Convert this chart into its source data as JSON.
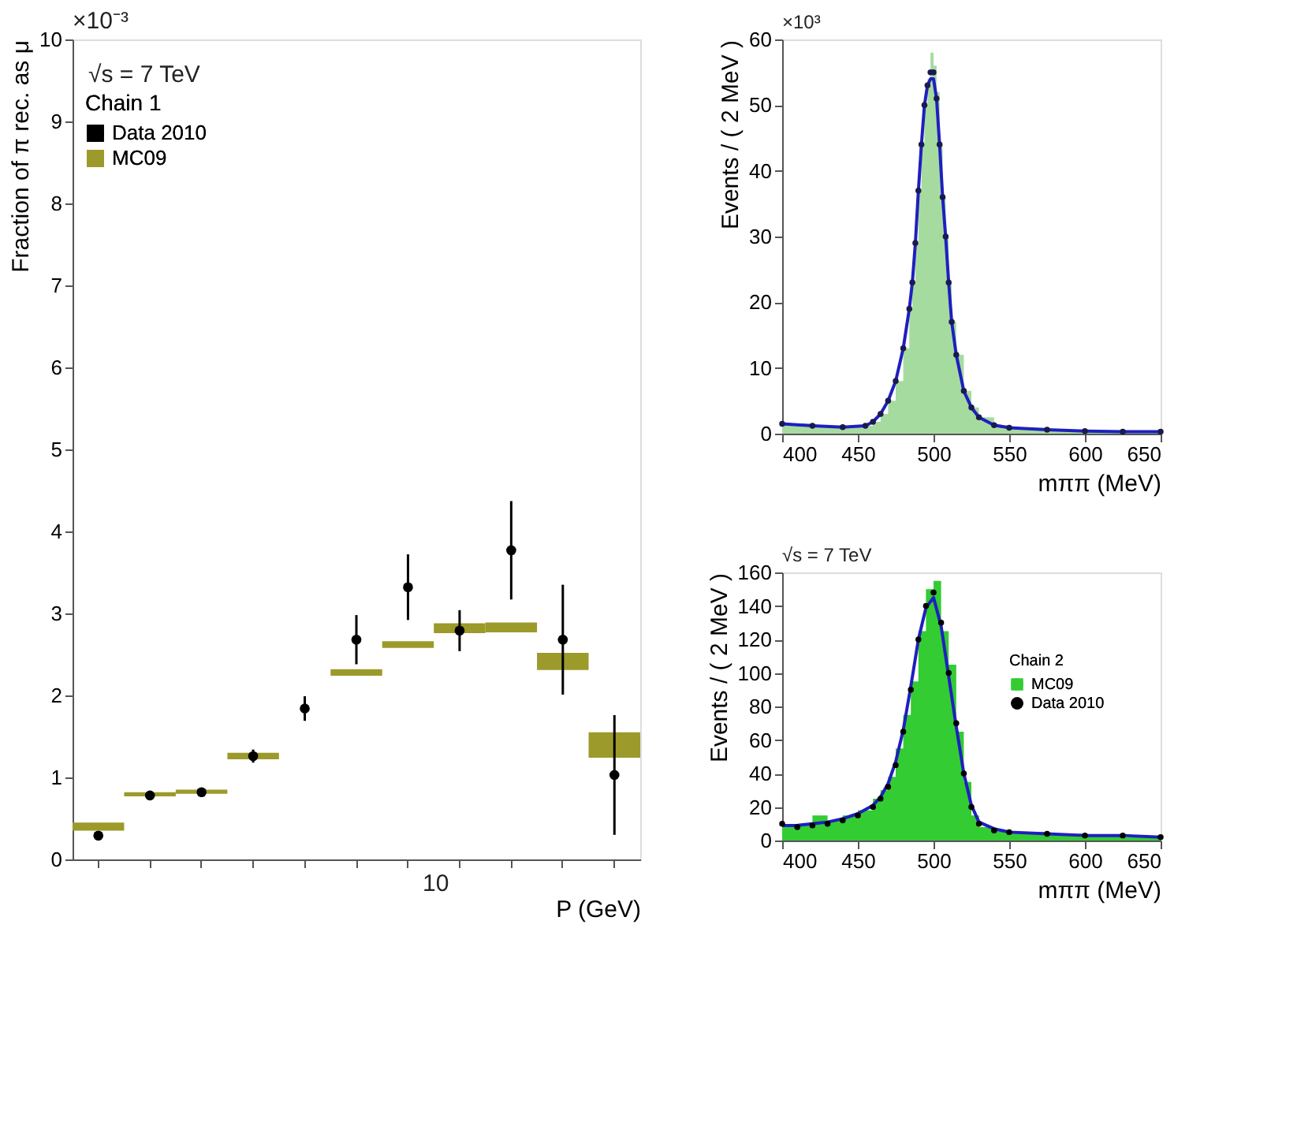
{
  "chart_data": [
    {
      "type": "scatter",
      "xlabel": "P (GeV)",
      "ylabel": "Fraction of  π rec. as μ",
      "legend_title": "Chain 1",
      "annotations": [
        "×10⁻³",
        "√s = 7 TeV",
        "10"
      ],
      "ylim": [
        0,
        10
      ],
      "yticks": [
        0,
        1,
        2,
        3,
        4,
        5,
        6,
        7,
        8,
        9,
        10
      ],
      "grid": false,
      "legend": "top left",
      "categories": [
        null,
        null,
        null,
        null,
        null,
        null,
        null,
        null,
        null,
        null,
        null
      ],
      "series": [
        {
          "name": "Data 2010",
          "marker": "circle",
          "color": "#000000",
          "values": [
            0.29,
            0.78,
            0.82,
            1.26,
            1.84,
            2.68,
            3.32,
            2.79,
            3.77,
            2.68,
            1.03
          ],
          "errors": [
            null,
            null,
            null,
            0.08,
            0.15,
            0.3,
            0.4,
            0.25,
            0.6,
            0.67,
            0.73
          ]
        },
        {
          "name": "MC09",
          "type": "bar",
          "color": "#9c9a2a",
          "base": [
            0.35,
            0.77,
            0.8,
            1.22,
            null,
            2.24,
            2.58,
            2.76,
            2.77,
            2.31,
            1.24
          ],
          "values": [
            0.1,
            0.05,
            0.05,
            0.08,
            null,
            0.08,
            0.08,
            0.12,
            0.12,
            0.21,
            0.31
          ]
        }
      ]
    },
    {
      "type": "area",
      "xlabel": "mππ (MeV)",
      "ylabel": "Events / ( 2 MeV )",
      "annotations": [
        "×10³"
      ],
      "xlim": [
        400,
        650
      ],
      "xticks": [
        400,
        450,
        500,
        550,
        600,
        650
      ],
      "ylim": [
        0,
        60
      ],
      "yticks": [
        0,
        10,
        20,
        30,
        40,
        50,
        60
      ],
      "grid": false,
      "x": [
        400,
        420,
        440,
        455,
        460,
        465,
        470,
        475,
        480,
        484,
        486,
        488,
        490,
        492,
        494,
        496,
        498,
        500,
        502,
        504,
        506,
        508,
        510,
        512,
        515,
        520,
        525,
        530,
        540,
        550,
        575,
        600,
        625,
        650
      ],
      "series": [
        {
          "color": "#a6dba0",
          "values": [
            1.5,
            1.2,
            1.0,
            1.2,
            1.8,
            3,
            5,
            8,
            13,
            19,
            23,
            29,
            37,
            44,
            50,
            54,
            58,
            56,
            52,
            44,
            36,
            30,
            23,
            17,
            12,
            6.5,
            4,
            2.5,
            1.3,
            0.9,
            0.6,
            0.4,
            0.3,
            0.3
          ]
        },
        {
          "type": "line",
          "color": "#1f1fbf",
          "values": [
            1.5,
            1.2,
            1.0,
            1.2,
            1.8,
            3,
            5,
            8,
            13,
            19,
            23,
            29,
            37,
            44,
            50,
            53,
            54,
            54,
            51,
            44,
            36,
            30,
            23,
            17,
            12,
            6.5,
            4,
            2.5,
            1.3,
            0.9,
            0.6,
            0.4,
            0.3,
            0.3
          ]
        },
        {
          "type": "scatter",
          "marker": "circle",
          "color": "#1a1a50",
          "values": [
            1.5,
            1.2,
            1.0,
            1.2,
            1.8,
            3,
            5,
            8,
            13,
            19,
            23,
            29,
            37,
            44,
            50,
            53,
            55,
            55,
            51,
            44,
            36,
            30,
            23,
            17,
            12,
            6.5,
            4,
            2.5,
            1.3,
            0.9,
            0.6,
            0.4,
            0.3,
            0.3
          ]
        }
      ]
    },
    {
      "type": "area",
      "xlabel": "mππ (MeV)",
      "ylabel": "Events / ( 2 MeV )",
      "legend_title": "Chain 2",
      "annotations": [
        "√s = 7 TeV"
      ],
      "xlim": [
        400,
        650
      ],
      "xticks": [
        400,
        450,
        500,
        550,
        600,
        650
      ],
      "ylim": [
        0,
        160
      ],
      "yticks": [
        0,
        20,
        40,
        60,
        80,
        100,
        120,
        140,
        160
      ],
      "grid": false,
      "legend": "right",
      "x": [
        400,
        410,
        420,
        430,
        440,
        450,
        460,
        465,
        470,
        475,
        480,
        485,
        490,
        495,
        500,
        505,
        510,
        515,
        520,
        525,
        530,
        540,
        550,
        575,
        600,
        625,
        650
      ],
      "series": [
        {
          "name": "MC09",
          "color": "#33cc33",
          "values": [
            8,
            10,
            15,
            12,
            15,
            18,
            25,
            30,
            38,
            55,
            75,
            95,
            125,
            150,
            155,
            125,
            105,
            65,
            35,
            15,
            8,
            6,
            5,
            4,
            3,
            2,
            2
          ]
        },
        {
          "type": "line",
          "color": "#1f1fbf",
          "values": [
            9,
            9,
            10,
            11,
            13,
            16,
            21,
            26,
            34,
            47,
            66,
            92,
            120,
            139,
            145,
            128,
            98,
            68,
            40,
            21,
            11,
            7,
            5,
            4,
            3,
            3,
            2
          ]
        },
        {
          "name": "Data 2010",
          "type": "scatter",
          "marker": "circle",
          "color": "#000000",
          "values": [
            10,
            8,
            9,
            10,
            12,
            15,
            20,
            25,
            32,
            45,
            65,
            90,
            120,
            140,
            148,
            130,
            100,
            70,
            40,
            20,
            10,
            6,
            5,
            4,
            3,
            3,
            2
          ]
        }
      ]
    }
  ]
}
